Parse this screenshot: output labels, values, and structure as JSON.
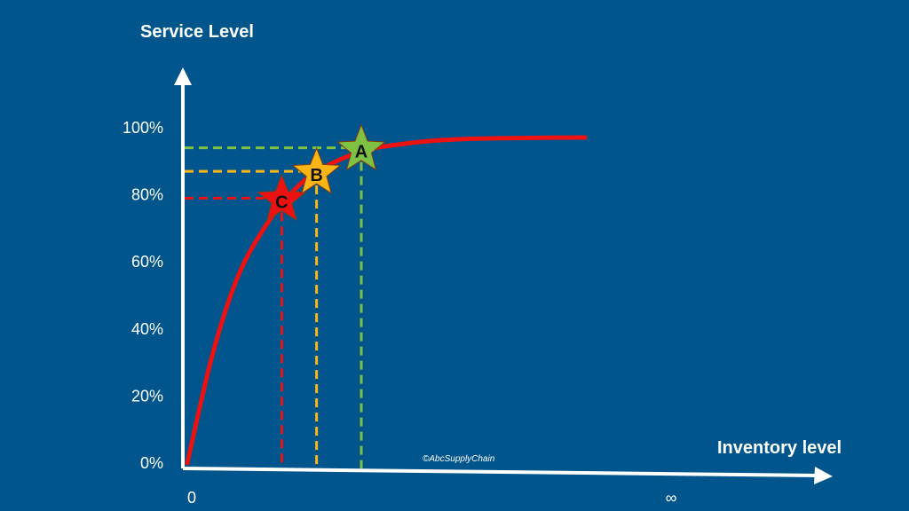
{
  "colors": {
    "background": "#00558C",
    "curve": "#EE1111",
    "axis": "#FFFFFF",
    "point_C": "#EE1111",
    "point_B": "#FBB616",
    "point_A": "#7DC242"
  },
  "chart_data": {
    "type": "line",
    "title": "",
    "ylabel": "Service Level",
    "xlabel": "Inventory level",
    "y_ticks": [
      "0%",
      "20%",
      "40%",
      "60%",
      "80%",
      "100%"
    ],
    "y_tick_values": [
      0,
      20,
      40,
      60,
      80,
      100
    ],
    "x_ticks": [
      "0",
      "∞"
    ],
    "ylim": [
      0,
      100
    ],
    "xlim": [
      0,
      1
    ],
    "grid": false,
    "series": [
      {
        "values": [
          [
            0,
            0
          ],
          [
            0.05,
            32
          ],
          [
            0.1,
            55
          ],
          [
            0.15,
            69
          ],
          [
            0.2,
            79
          ],
          [
            0.25,
            86
          ],
          [
            0.3,
            90
          ],
          [
            0.35,
            93
          ],
          [
            0.4,
            94.5
          ],
          [
            0.5,
            96.2
          ],
          [
            0.6,
            96.8
          ],
          [
            0.7,
            97
          ],
          [
            0.8,
            97.1
          ]
        ]
      }
    ],
    "points": [
      {
        "label": "C",
        "x": 0.19,
        "y": 79,
        "color": "#EE1111",
        "line_color": "#EE1111"
      },
      {
        "label": "B",
        "x": 0.26,
        "y": 87,
        "color": "#FBB616",
        "line_color": "#FBB616"
      },
      {
        "label": "A",
        "x": 0.35,
        "y": 94,
        "color": "#7DC242",
        "line_color": "#7DC242"
      }
    ]
  },
  "watermark": "©AbcSupplyChain"
}
